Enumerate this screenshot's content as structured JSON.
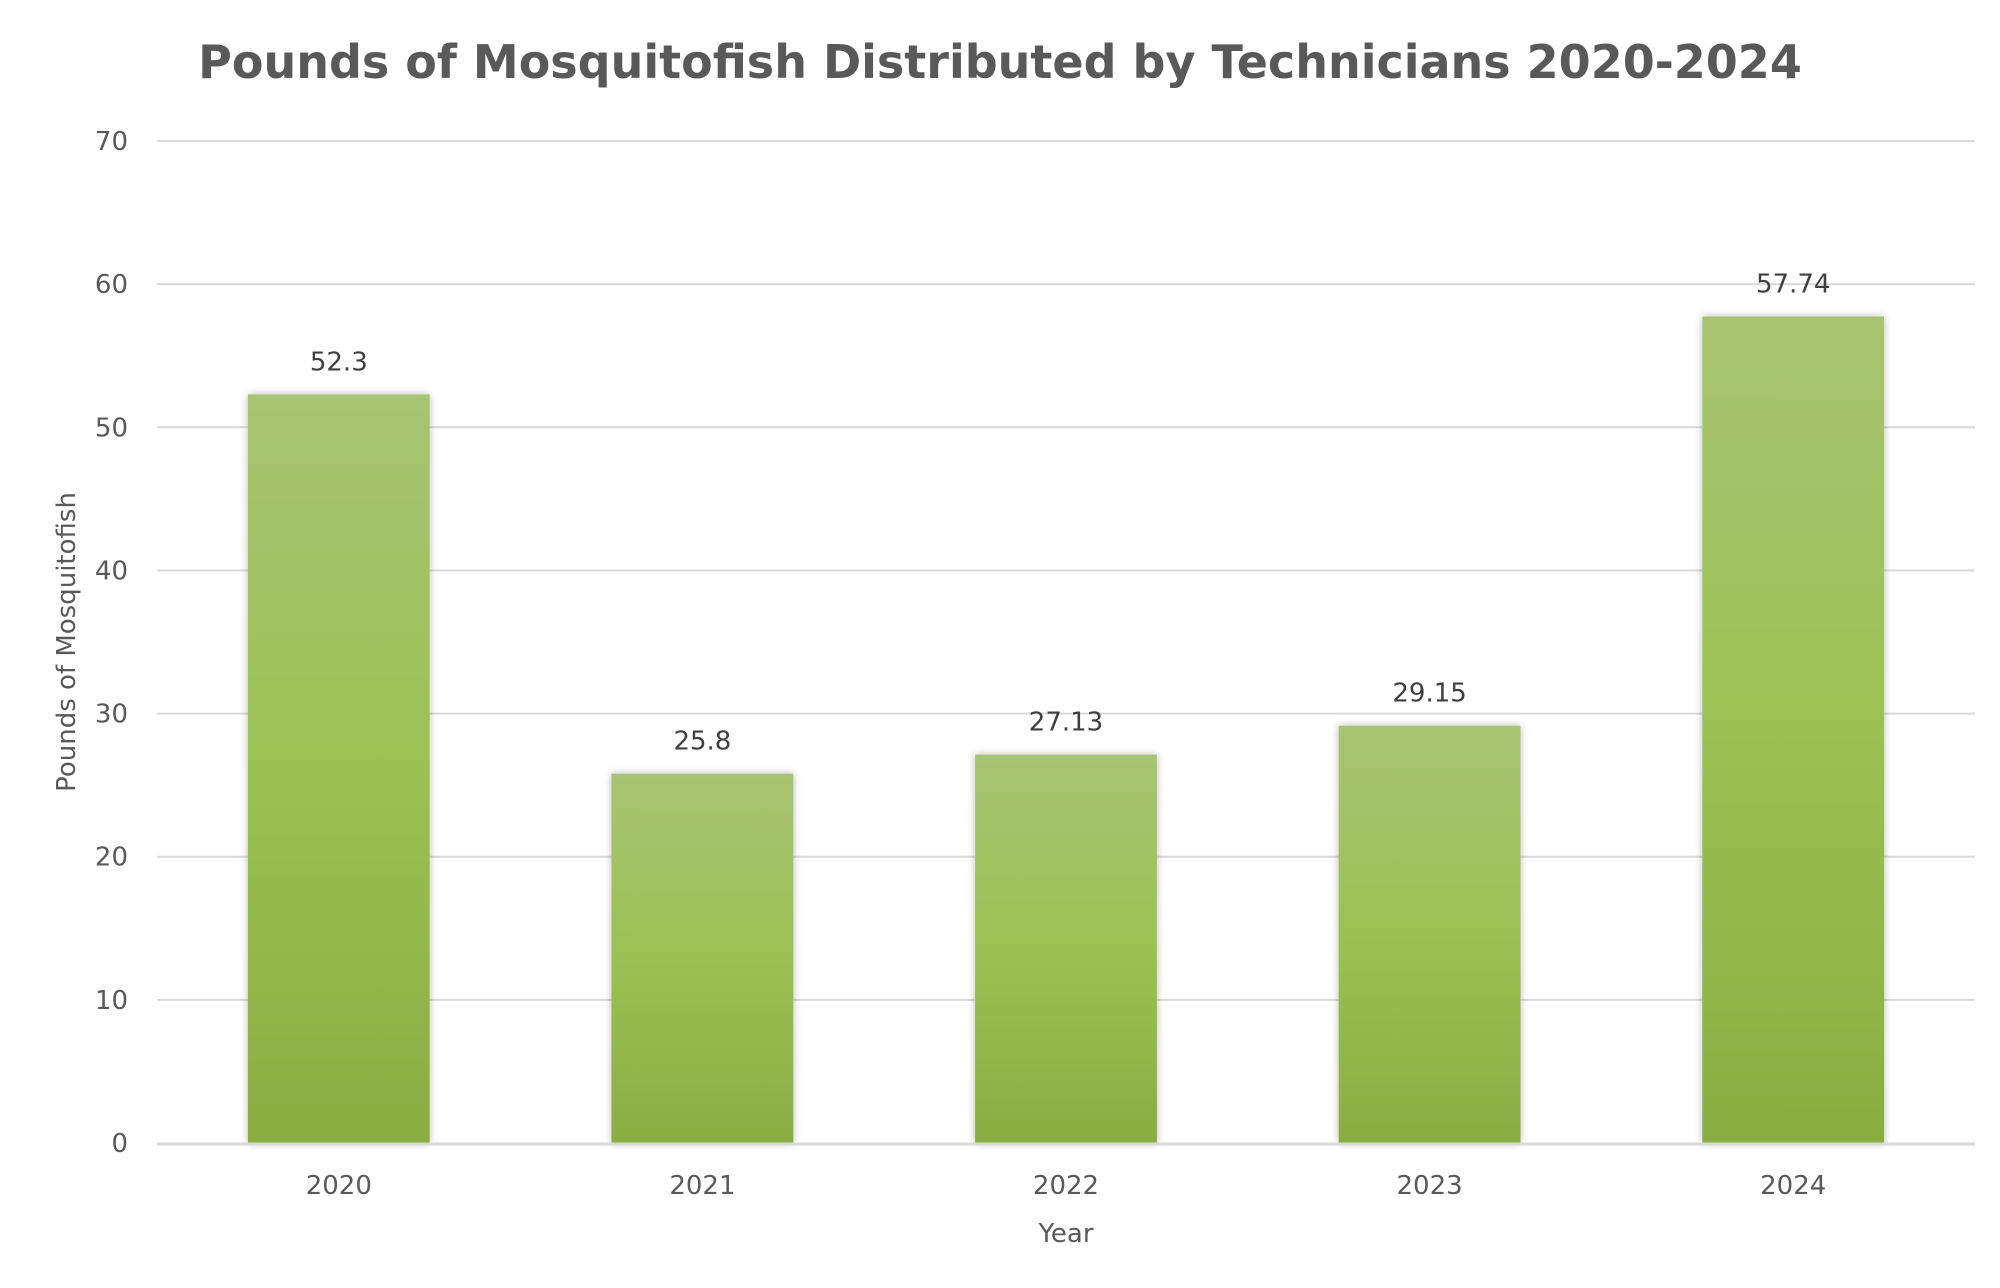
{
  "chart_data": {
    "type": "bar",
    "title": "Pounds of Mosquitofish Distributed by Technicians 2020-2024",
    "xlabel": "Year",
    "ylabel": "Pounds of Mosquitofish",
    "categories": [
      "2020",
      "2021",
      "2022",
      "2023",
      "2024"
    ],
    "values": [
      52.3,
      25.8,
      27.13,
      29.15,
      57.74
    ],
    "data_labels": [
      "52.3",
      "25.8",
      "27.13",
      "29.15",
      "57.74"
    ],
    "ylim": [
      0,
      70
    ],
    "yticks": [
      "0",
      "10",
      "20",
      "30",
      "40",
      "50",
      "60",
      "70"
    ],
    "grid": true,
    "legend": "none",
    "colors": {
      "bar_top": "#a7c472",
      "bar_mid": "#9bc153",
      "bar_bottom": "#8aad42",
      "grid": "#d9d9d9",
      "text": "#595959"
    }
  }
}
